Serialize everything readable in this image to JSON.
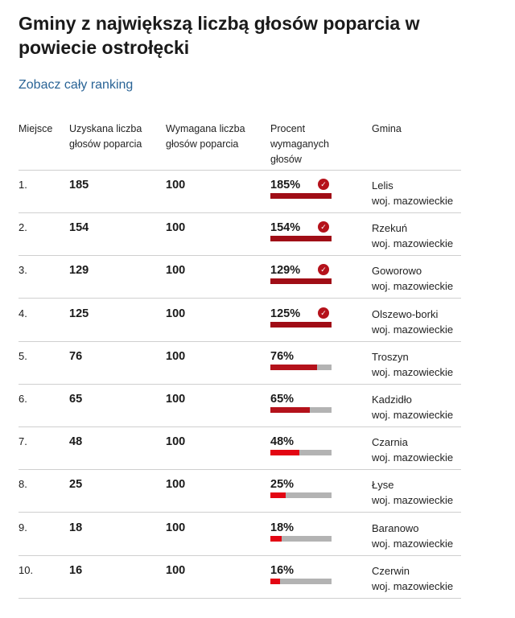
{
  "title": "Gminy z największą liczbą głosów poparcia w powiecie ostrołęcki",
  "ranking_link": "Zobacz cały ranking",
  "columns": {
    "place": "Miejsce",
    "obtained": "Uzyskana liczba głosów poparcia",
    "required": "Wymagana liczba głosów poparcia",
    "percent": "Procent wymaganych głosów",
    "gmina": "Gmina"
  },
  "colors": {
    "full": "#a00d16",
    "partial_high": "#b4121b",
    "partial_low": "#e30613",
    "track": "#b3b3b3",
    "check": "#b5121b",
    "link": "#2a6496"
  },
  "rows": [
    {
      "place": "1.",
      "obtained": "185",
      "required": "100",
      "percent": "185%",
      "percent_value": 185,
      "gmina": "Lelis",
      "region": "woj. mazowieckie",
      "check_icon": "check-circle-icon"
    },
    {
      "place": "2.",
      "obtained": "154",
      "required": "100",
      "percent": "154%",
      "percent_value": 154,
      "gmina": "Rzekuń",
      "region": "woj. mazowieckie",
      "check_icon": "check-circle-icon"
    },
    {
      "place": "3.",
      "obtained": "129",
      "required": "100",
      "percent": "129%",
      "percent_value": 129,
      "gmina": "Goworowo",
      "region": "woj. mazowieckie",
      "check_icon": "check-circle-icon"
    },
    {
      "place": "4.",
      "obtained": "125",
      "required": "100",
      "percent": "125%",
      "percent_value": 125,
      "gmina": "Olszewo-borki",
      "region": "woj. mazowieckie",
      "check_icon": "check-circle-icon"
    },
    {
      "place": "5.",
      "obtained": "76",
      "required": "100",
      "percent": "76%",
      "percent_value": 76,
      "gmina": "Troszyn",
      "region": "woj. mazowieckie"
    },
    {
      "place": "6.",
      "obtained": "65",
      "required": "100",
      "percent": "65%",
      "percent_value": 65,
      "gmina": "Kadzidło",
      "region": "woj. mazowieckie"
    },
    {
      "place": "7.",
      "obtained": "48",
      "required": "100",
      "percent": "48%",
      "percent_value": 48,
      "gmina": "Czarnia",
      "region": "woj. mazowieckie"
    },
    {
      "place": "8.",
      "obtained": "25",
      "required": "100",
      "percent": "25%",
      "percent_value": 25,
      "gmina": "Łyse",
      "region": "woj. mazowieckie"
    },
    {
      "place": "9.",
      "obtained": "18",
      "required": "100",
      "percent": "18%",
      "percent_value": 18,
      "gmina": "Baranowo",
      "region": "woj. mazowieckie"
    },
    {
      "place": "10.",
      "obtained": "16",
      "required": "100",
      "percent": "16%",
      "percent_value": 16,
      "gmina": "Czerwin",
      "region": "woj. mazowieckie"
    }
  ]
}
